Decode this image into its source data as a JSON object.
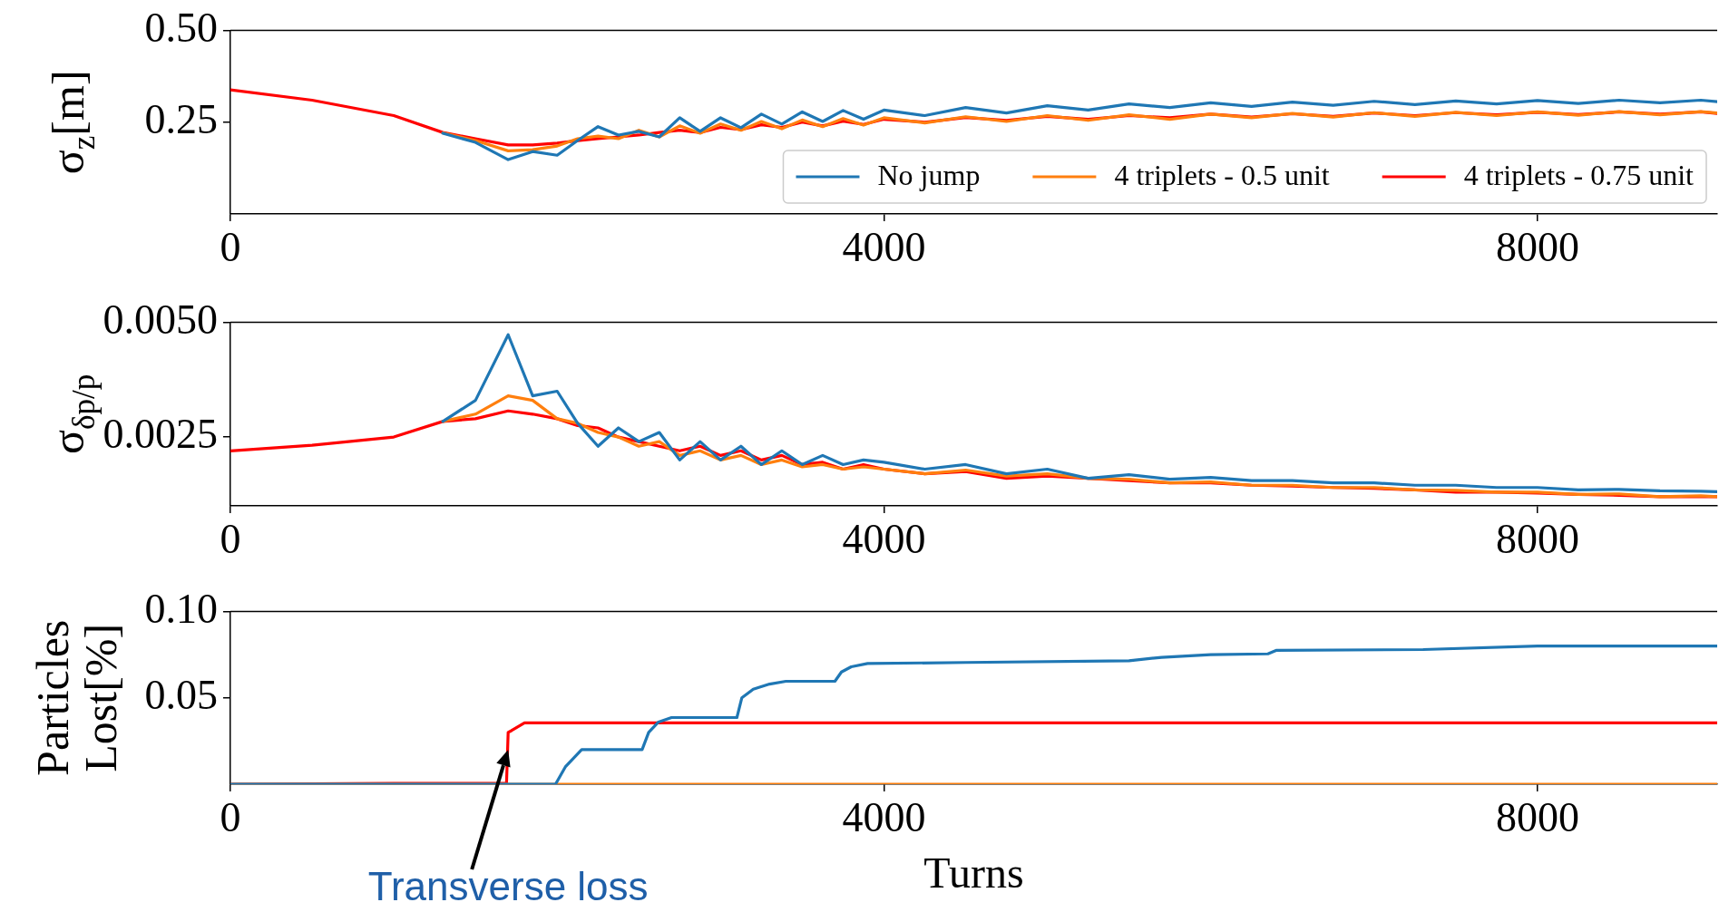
{
  "chart_data": [
    {
      "type": "line",
      "ylabel": "σ$_{z}$[m]",
      "legend": "bottom right",
      "grid": false,
      "marker": "none",
      "line_style": "solid",
      "xlim": [
        0,
        9100
      ],
      "xticks": [
        0,
        4000,
        8000
      ],
      "ylim": [
        0,
        0.5
      ],
      "yticks": [
        0.25,
        {
          "value": 0.5,
          "label": "0.50"
        }
      ],
      "x": [
        0,
        500,
        1000,
        1300,
        1500,
        1700,
        1850,
        2000,
        2125,
        2250,
        2375,
        2500,
        2625,
        2750,
        2875,
        3000,
        3125,
        3250,
        3375,
        3500,
        3625,
        3750,
        3875,
        4000,
        4250,
        4500,
        4750,
        5000,
        5250,
        5500,
        5750,
        6000,
        6250,
        6500,
        6750,
        7000,
        7250,
        7500,
        7750,
        8000,
        8250,
        8500,
        8750,
        9000,
        9100
      ],
      "series": [
        {
          "name": "No jump",
          "color": "#1f77b4",
          "values": [
            null,
            null,
            null,
            0.22,
            0.195,
            0.148,
            0.17,
            0.16,
            0.2,
            0.238,
            0.215,
            0.225,
            0.21,
            0.262,
            0.225,
            0.262,
            0.235,
            0.272,
            0.245,
            0.278,
            0.252,
            0.282,
            0.258,
            0.283,
            0.268,
            0.29,
            0.275,
            0.295,
            0.283,
            0.3,
            0.29,
            0.303,
            0.293,
            0.305,
            0.296,
            0.307,
            0.298,
            0.308,
            0.3,
            0.309,
            0.301,
            0.31,
            0.303,
            0.31,
            0.306
          ]
        },
        {
          "name": "4 triplets - 0.5 unit",
          "color": "#ff7f0e",
          "values": [
            null,
            null,
            null,
            0.221,
            0.2,
            0.172,
            0.175,
            0.185,
            0.205,
            0.212,
            0.205,
            0.228,
            0.21,
            0.24,
            0.22,
            0.245,
            0.228,
            0.252,
            0.232,
            0.256,
            0.238,
            0.26,
            0.242,
            0.262,
            0.248,
            0.265,
            0.252,
            0.268,
            0.255,
            0.27,
            0.258,
            0.272,
            0.262,
            0.274,
            0.264,
            0.276,
            0.266,
            0.277,
            0.268,
            0.278,
            0.269,
            0.279,
            0.27,
            0.279,
            0.275
          ]
        },
        {
          "name": "4 triplets - 0.75 unit",
          "color": "#ff0000",
          "values": [
            0.338,
            0.31,
            0.268,
            0.222,
            0.205,
            0.188,
            0.188,
            0.193,
            0.2,
            0.205,
            0.21,
            0.215,
            0.222,
            0.228,
            0.222,
            0.236,
            0.23,
            0.243,
            0.236,
            0.25,
            0.24,
            0.253,
            0.244,
            0.258,
            0.25,
            0.263,
            0.255,
            0.266,
            0.258,
            0.268,
            0.262,
            0.272,
            0.264,
            0.273,
            0.266,
            0.275,
            0.268,
            0.276,
            0.27,
            0.277,
            0.271,
            0.278,
            0.272,
            0.278,
            0.274
          ]
        }
      ]
    },
    {
      "type": "line",
      "ylabel": "σ$_{δp/p}$",
      "grid": false,
      "marker": "none",
      "line_style": "solid",
      "xlim": [
        0,
        9100
      ],
      "xticks": [
        0,
        4000,
        8000
      ],
      "ylim": [
        0.001,
        0.005
      ],
      "yticks": [
        {
          "value": 0.0025,
          "label": "0.0025"
        },
        {
          "value": 0.005,
          "label": "0.0050"
        }
      ],
      "x": [
        0,
        500,
        1000,
        1300,
        1500,
        1700,
        1850,
        2000,
        2125,
        2250,
        2375,
        2500,
        2625,
        2750,
        2875,
        3000,
        3125,
        3250,
        3375,
        3500,
        3625,
        3750,
        3875,
        4000,
        4250,
        4500,
        4750,
        5000,
        5250,
        5500,
        5750,
        6000,
        6250,
        6500,
        6750,
        7000,
        7250,
        7500,
        7750,
        8000,
        8250,
        8500,
        8750,
        9000,
        9100
      ],
      "series": [
        {
          "color": "#1f77b4",
          "values": [
            null,
            null,
            null,
            0.00284,
            0.0033,
            0.00473,
            0.0034,
            0.0035,
            0.0028,
            0.0023,
            0.0027,
            0.0024,
            0.0026,
            0.002,
            0.0024,
            0.002,
            0.0023,
            0.0019,
            0.0022,
            0.0019,
            0.0021,
            0.0019,
            0.002,
            0.00195,
            0.0018,
            0.0019,
            0.0017,
            0.0018,
            0.0016,
            0.00168,
            0.00158,
            0.00162,
            0.00155,
            0.00155,
            0.0015,
            0.0015,
            0.00145,
            0.00145,
            0.0014,
            0.0014,
            0.00135,
            0.00136,
            0.00133,
            0.00132,
            0.00131
          ]
        },
        {
          "color": "#ff7f0e",
          "values": [
            null,
            null,
            null,
            0.00284,
            0.003,
            0.0034,
            0.0033,
            0.0029,
            0.0028,
            0.0026,
            0.0025,
            0.0023,
            0.0024,
            0.0021,
            0.0022,
            0.002,
            0.0021,
            0.0019,
            0.002,
            0.00185,
            0.0019,
            0.0018,
            0.00185,
            0.0018,
            0.0017,
            0.00178,
            0.00165,
            0.0017,
            0.0016,
            0.00158,
            0.0015,
            0.00152,
            0.00145,
            0.00145,
            0.0014,
            0.0014,
            0.00135,
            0.00134,
            0.0013,
            0.0013,
            0.00125,
            0.00126,
            0.0012,
            0.00122,
            0.0012
          ]
        },
        {
          "color": "#ff0000",
          "values": [
            0.0022,
            0.00232,
            0.0025,
            0.00284,
            0.0029,
            0.00307,
            0.003,
            0.0029,
            0.00275,
            0.0027,
            0.0025,
            0.0024,
            0.0023,
            0.0022,
            0.0023,
            0.0021,
            0.0022,
            0.002,
            0.0021,
            0.0019,
            0.00195,
            0.0018,
            0.0019,
            0.0018,
            0.0017,
            0.00175,
            0.0016,
            0.00165,
            0.0016,
            0.00155,
            0.0015,
            0.0015,
            0.00145,
            0.00143,
            0.0014,
            0.00138,
            0.00135,
            0.0013,
            0.0013,
            0.00128,
            0.00125,
            0.00123,
            0.0012,
            0.0012,
            0.0012
          ]
        }
      ]
    },
    {
      "type": "line",
      "ylabel": "Particles\nLost[%]",
      "xlabel": "Turns",
      "grid": false,
      "marker": "none",
      "line_style": "solid",
      "xlim": [
        0,
        9100
      ],
      "xticks": [
        0,
        4000,
        8000
      ],
      "ylim": [
        0,
        0.1
      ],
      "yticks": [
        0.05,
        {
          "value": 0.1,
          "label": "0.10"
        }
      ],
      "annotations": [
        {
          "text": "Transverse loss",
          "x": 1700,
          "y": 0.02
        }
      ],
      "series": [
        {
          "color": "#1f77b4",
          "x": [
            0,
            1990,
            2050,
            2150,
            2520,
            2560,
            2620,
            2700,
            3100,
            3130,
            3200,
            3300,
            3400,
            3700,
            3740,
            3800,
            3900,
            4500,
            5500,
            5700,
            6000,
            6350,
            6400,
            7300,
            8000,
            9100
          ],
          "values": [
            0,
            0,
            0.01,
            0.02,
            0.02,
            0.03,
            0.036,
            0.0386,
            0.0386,
            0.05,
            0.055,
            0.058,
            0.0596,
            0.0596,
            0.065,
            0.068,
            0.0699,
            0.0705,
            0.0715,
            0.0735,
            0.075,
            0.0755,
            0.0775,
            0.078,
            0.08,
            0.08
          ]
        },
        {
          "color": "#ff7f0e",
          "x": [
            0,
            9100
          ],
          "values": [
            0,
            0
          ]
        },
        {
          "color": "#ff0000",
          "x": [
            0,
            1000,
            1690,
            1700,
            1720,
            1800,
            9100
          ],
          "values": [
            0,
            0.0005,
            0.0005,
            0.03,
            0.031,
            0.0355,
            0.0355
          ]
        }
      ]
    }
  ]
}
